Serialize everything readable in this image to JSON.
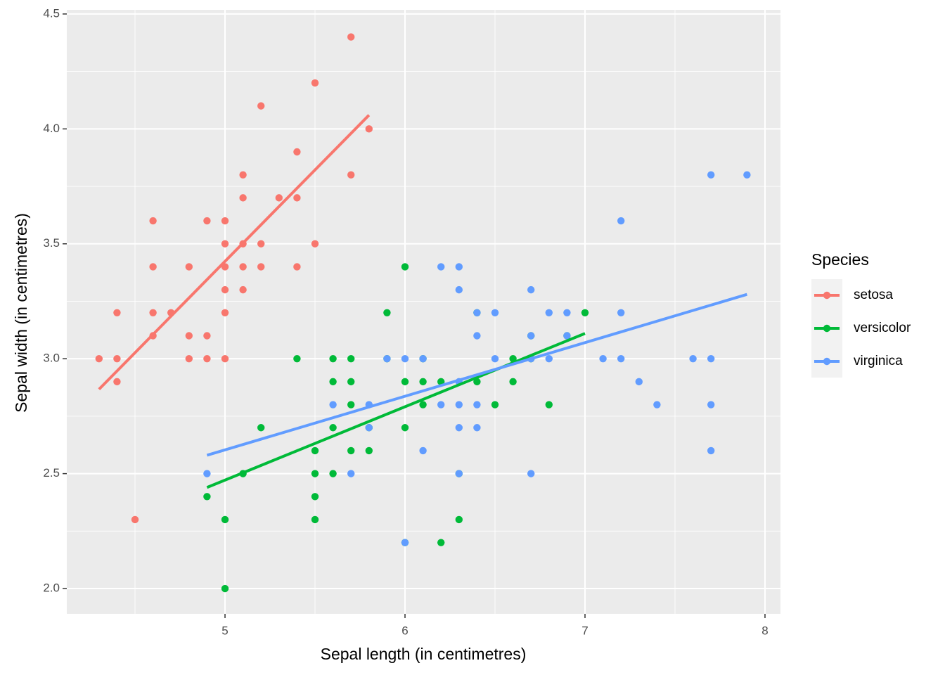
{
  "chart_data": {
    "type": "scatter",
    "x_label": "Sepal length (in centimetres)",
    "y_label": "Sepal width (in centimetres)",
    "legend_title": "Species",
    "legend_position": "right",
    "grid": true,
    "xlim": [
      4.121,
      8.086
    ],
    "ylim": [
      1.89,
      4.518
    ],
    "xticks": [
      5,
      6,
      7,
      8
    ],
    "yticks": [
      {
        "value": 2,
        "label": "2.0"
      },
      2.5,
      {
        "value": 3,
        "label": "3.0"
      },
      3.5,
      {
        "value": 4,
        "label": "4.0"
      },
      4.5
    ],
    "series": [
      {
        "name": "setosa",
        "color": "#F8766D",
        "x": [
          4.3,
          4.4,
          4.4,
          4.4,
          4.5,
          4.6,
          4.6,
          4.6,
          4.6,
          4.7,
          4.8,
          4.8,
          4.8,
          4.9,
          4.9,
          4.9,
          5.0,
          5.0,
          5.0,
          5.0,
          5.0,
          5.0,
          5.1,
          5.1,
          5.1,
          5.1,
          5.1,
          5.2,
          5.2,
          5.2,
          5.3,
          5.4,
          5.4,
          5.4,
          5.5,
          5.5,
          5.7,
          5.7,
          5.8
        ],
        "values": [
          3.0,
          3.2,
          3.0,
          2.9,
          2.3,
          3.6,
          3.4,
          3.2,
          3.1,
          3.2,
          3.4,
          3.1,
          3.0,
          3.6,
          3.1,
          3.0,
          3.6,
          3.5,
          3.4,
          3.3,
          3.2,
          3.0,
          3.8,
          3.7,
          3.5,
          3.4,
          3.3,
          4.1,
          3.5,
          3.4,
          3.7,
          3.9,
          3.7,
          3.4,
          4.2,
          3.5,
          4.4,
          3.8,
          4.0
        ],
        "fit_x": [
          4.3,
          5.8
        ],
        "fit_y": [
          2.867,
          4.06
        ]
      },
      {
        "name": "versicolor",
        "color": "#00BA38",
        "x": [
          4.9,
          5.0,
          5.0,
          5.1,
          5.2,
          5.4,
          5.5,
          5.5,
          5.5,
          5.5,
          5.6,
          5.6,
          5.6,
          5.6,
          5.7,
          5.7,
          5.7,
          5.7,
          5.8,
          5.8,
          5.9,
          5.9,
          6.0,
          6.0,
          6.0,
          6.0,
          6.1,
          6.1,
          6.1,
          6.2,
          6.2,
          6.3,
          6.3,
          6.4,
          6.4,
          6.5,
          6.6,
          6.6,
          6.7,
          6.7,
          6.8,
          6.9,
          7.0
        ],
        "values": [
          2.4,
          2.3,
          2.0,
          2.5,
          2.7,
          3.0,
          2.6,
          2.5,
          2.4,
          2.3,
          3.0,
          2.9,
          2.7,
          2.5,
          3.0,
          2.9,
          2.8,
          2.6,
          2.7,
          2.6,
          3.2,
          3.0,
          3.4,
          2.9,
          2.7,
          2.2,
          3.0,
          2.9,
          2.8,
          2.9,
          2.2,
          2.5,
          2.3,
          2.9,
          3.2,
          2.8,
          3.0,
          2.9,
          3.1,
          3.0,
          2.8,
          3.1,
          3.2
        ],
        "fit_x": [
          4.9,
          7.0
        ],
        "fit_y": [
          2.44,
          3.11
        ]
      },
      {
        "name": "virginica",
        "color": "#619CFF",
        "x": [
          4.9,
          5.6,
          5.7,
          5.8,
          5.8,
          5.9,
          6.0,
          6.0,
          6.1,
          6.1,
          6.2,
          6.2,
          6.3,
          6.3,
          6.3,
          6.3,
          6.3,
          6.3,
          6.4,
          6.4,
          6.4,
          6.4,
          6.5,
          6.5,
          6.7,
          6.7,
          6.7,
          6.7,
          6.8,
          6.8,
          6.9,
          6.9,
          7.1,
          7.2,
          7.2,
          7.2,
          7.3,
          7.4,
          7.6,
          7.7,
          7.7,
          7.7,
          7.7,
          7.9
        ],
        "values": [
          2.5,
          2.8,
          2.5,
          2.8,
          2.7,
          3.0,
          3.0,
          2.2,
          3.0,
          2.6,
          3.4,
          2.8,
          3.4,
          3.3,
          2.9,
          2.8,
          2.7,
          2.5,
          3.2,
          3.1,
          2.8,
          2.7,
          3.2,
          3.0,
          3.3,
          3.1,
          3.0,
          2.5,
          3.2,
          3.0,
          3.2,
          3.1,
          3.0,
          3.6,
          3.2,
          3.0,
          2.9,
          2.8,
          3.0,
          3.8,
          3.0,
          2.8,
          2.6,
          3.8
        ],
        "fit_x": [
          4.9,
          7.9
        ],
        "fit_y": [
          2.58,
          3.28
        ]
      }
    ]
  }
}
